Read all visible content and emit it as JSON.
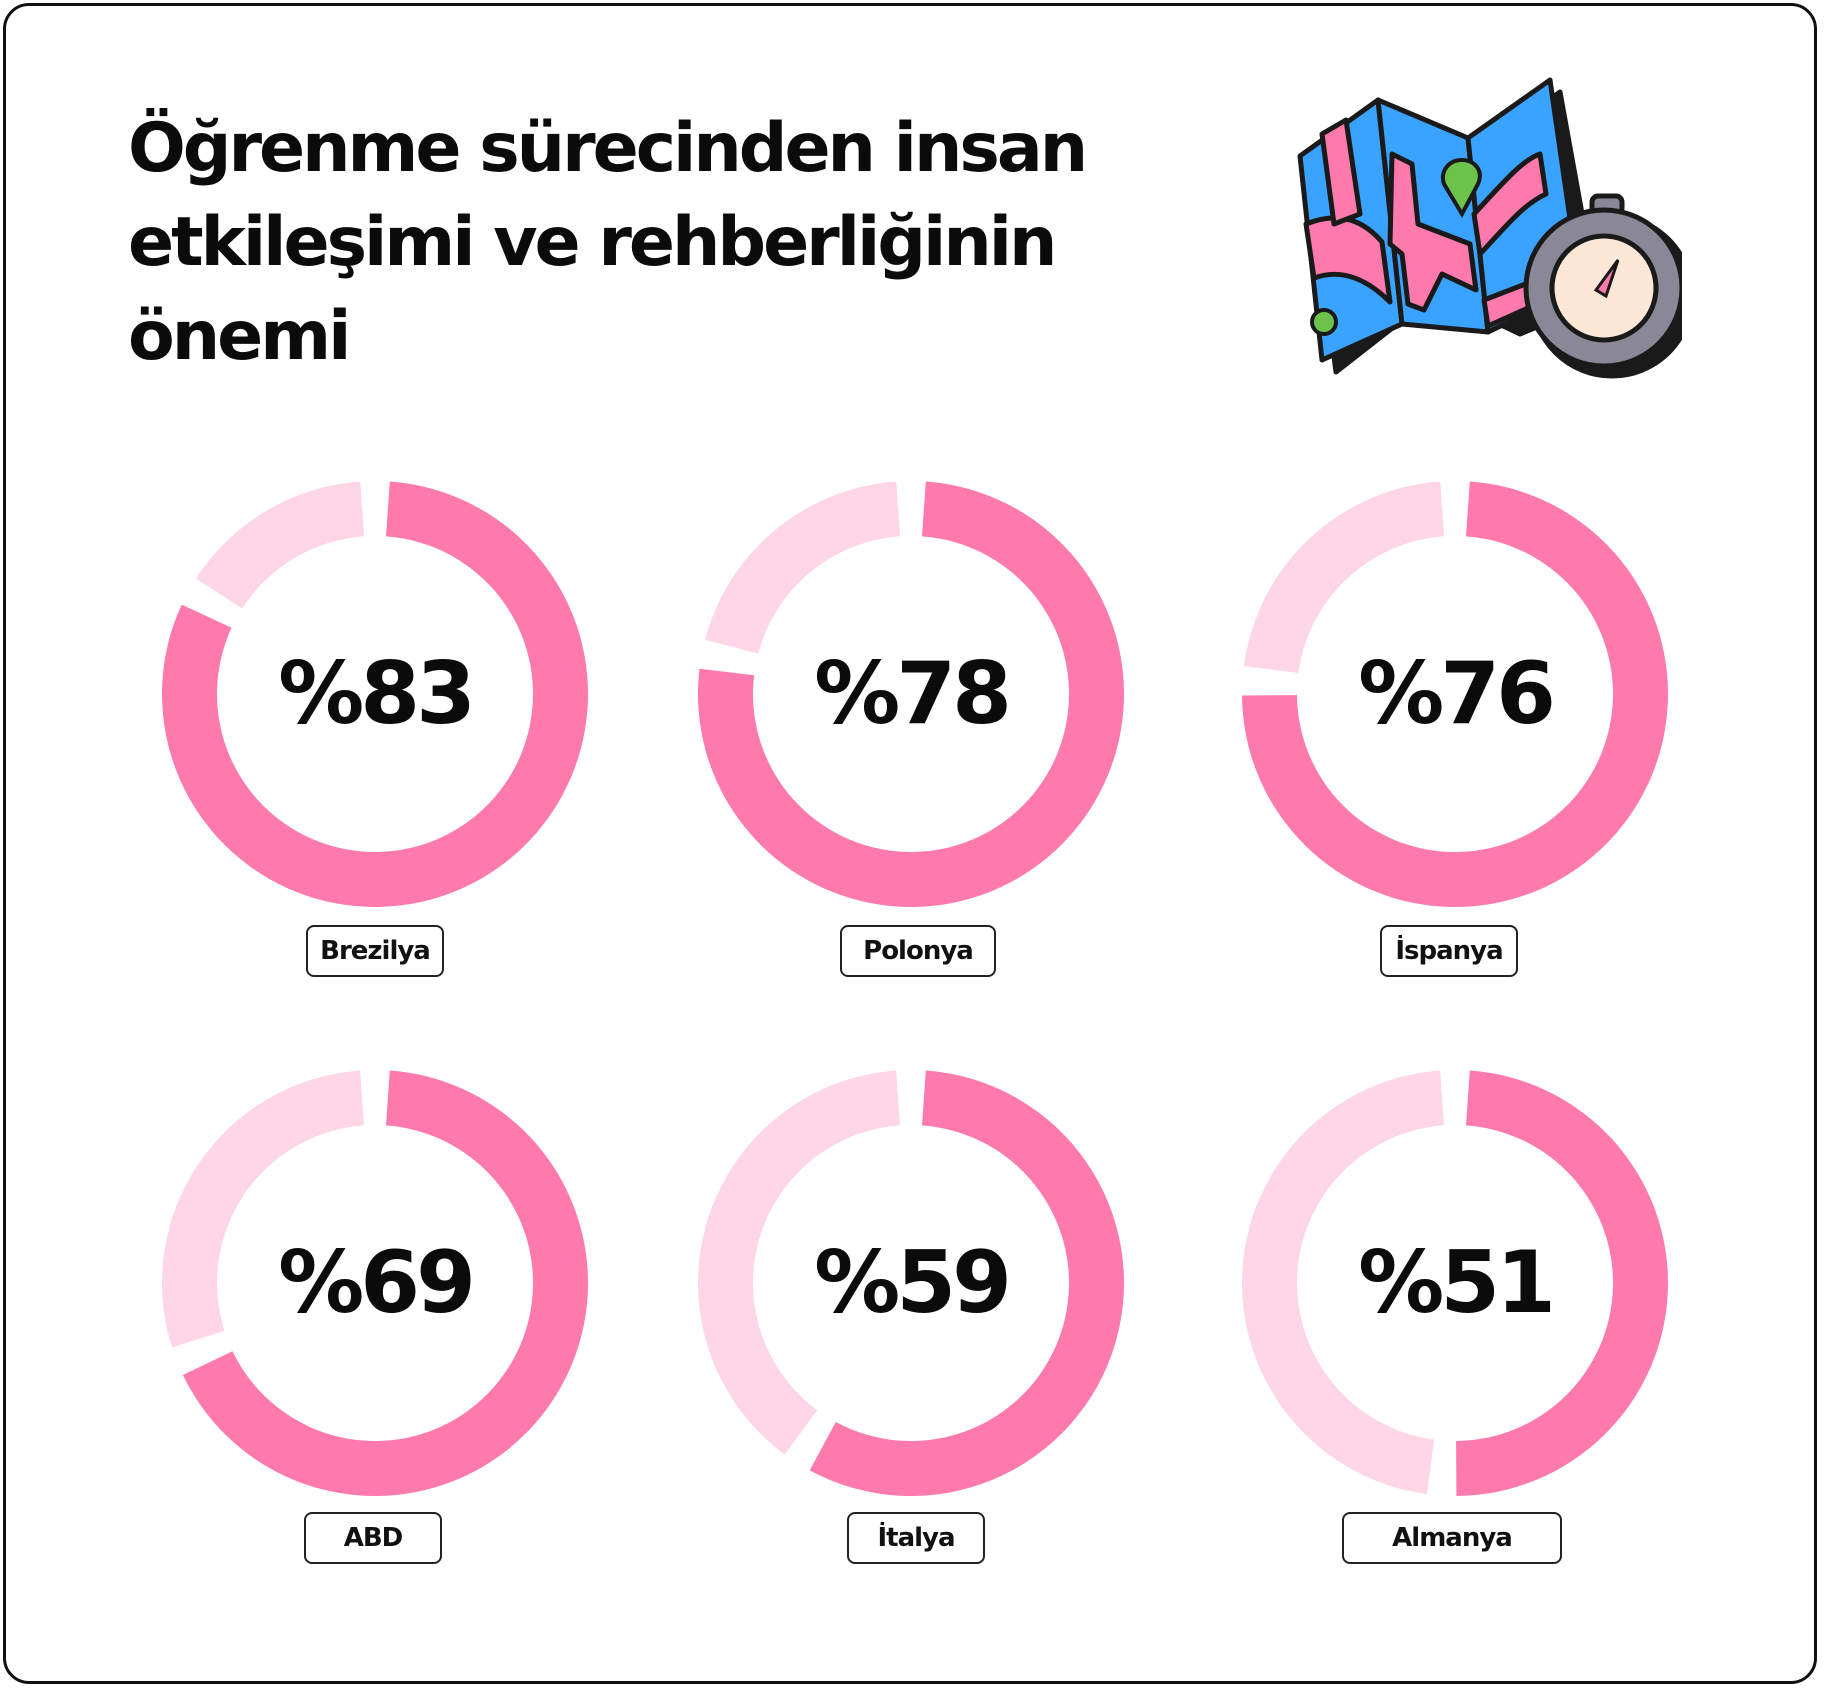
{
  "title": "Öğrenme sürecinden insan etkileşimi ve rehberliğinin önemi",
  "colors": {
    "accent": "#ff7aac",
    "track": "#ffd6e6",
    "text": "#0b0b0b",
    "map_blue": "#3aa2ff",
    "map_pink": "#ff7aac",
    "map_green": "#6cc24a",
    "compass_gray": "#8a8797",
    "compass_face": "#fde7d6"
  },
  "illustration": {
    "icons": [
      "folded-map-icon",
      "compass-icon",
      "location-pin-icon"
    ]
  },
  "chart_data": {
    "type": "pie",
    "variant": "donut",
    "unit": "%",
    "categories": [
      "Brezilya",
      "Polonya",
      "İspanya",
      "ABD",
      "İtalya",
      "Almanya"
    ],
    "values": [
      83,
      78,
      76,
      69,
      59,
      51
    ],
    "value_labels": [
      "%83",
      "%78",
      "%76",
      "%69",
      "%59",
      "%51"
    ],
    "max": 100
  }
}
